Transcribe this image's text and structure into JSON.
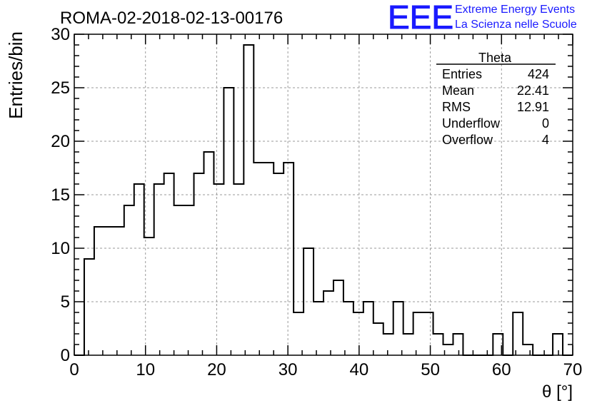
{
  "header": {
    "run_title": "ROMA-02-2018-02-13-00176",
    "logo_text": "EEE",
    "logo_line1": "Extreme Energy Events",
    "logo_line2": "La Scienza nelle Scuole",
    "logo_color": "#1a1aff"
  },
  "stats": {
    "title": "Theta",
    "rows": [
      {
        "label": "Entries",
        "value": "424"
      },
      {
        "label": "Mean",
        "value": "22.41"
      },
      {
        "label": "RMS",
        "value": "12.91"
      },
      {
        "label": "Underflow",
        "value": "0"
      },
      {
        "label": "Overflow",
        "value": "4"
      }
    ]
  },
  "chart_data": {
    "type": "bar",
    "histogram": true,
    "title": "ROMA-02-2018-02-13-00176",
    "xlabel": "θ [°]",
    "ylabel": "Entries/bin",
    "xlim": [
      0,
      70
    ],
    "ylim": [
      0,
      30
    ],
    "grid": true,
    "x_ticks": [
      0,
      10,
      20,
      30,
      40,
      50,
      60,
      70
    ],
    "y_ticks": [
      0,
      5,
      10,
      15,
      20,
      25,
      30
    ],
    "bin_edges": [
      0.0,
      1.4,
      2.8,
      4.2,
      5.6,
      7.0,
      8.4,
      9.8,
      11.2,
      12.6,
      14.0,
      15.4,
      16.8,
      18.2,
      19.6,
      21.0,
      22.4,
      23.8,
      25.2,
      26.6,
      28.0,
      29.4,
      30.8,
      32.2,
      33.6,
      35.0,
      36.4,
      37.8,
      39.2,
      40.6,
      42.0,
      43.4,
      44.8,
      46.2,
      47.6,
      49.0,
      50.4,
      51.8,
      53.2,
      54.6,
      56.0,
      57.4,
      58.8,
      60.2,
      61.6,
      63.0,
      64.4,
      65.8,
      67.2,
      68.6,
      70.0
    ],
    "values": [
      0,
      9,
      12,
      12,
      12,
      14,
      16,
      11,
      16,
      17,
      14,
      14,
      17,
      19,
      16,
      25,
      16,
      29,
      18,
      18,
      17,
      18,
      4,
      10,
      5,
      6,
      7,
      5,
      4,
      5,
      3,
      2,
      5,
      2,
      4,
      4,
      2,
      1,
      2,
      0,
      0,
      0,
      2,
      0,
      4,
      1,
      0,
      0,
      2,
      0
    ],
    "line_color": "#000000",
    "grid_color": "#9a9a9a"
  }
}
